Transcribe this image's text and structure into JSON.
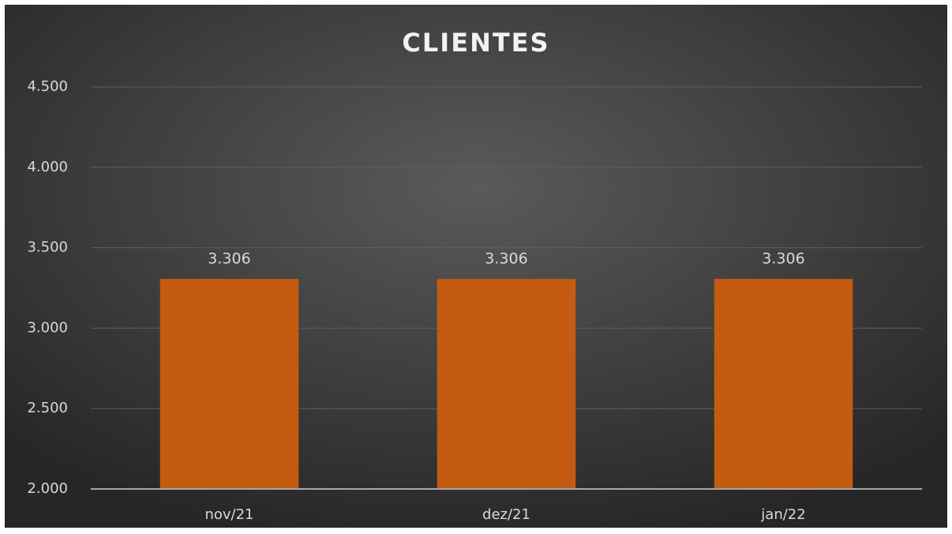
{
  "chart_data": {
    "type": "bar",
    "title": "CLIENTES",
    "categories": [
      "nov/21",
      "dez/21",
      "jan/22"
    ],
    "values": [
      3306,
      3306,
      3306
    ],
    "value_labels": [
      "3.306",
      "3.306",
      "3.306"
    ],
    "color": "#c55a11",
    "ylim": [
      2000,
      4500
    ],
    "yticks": [
      {
        "value": 2000,
        "label": "2.000"
      },
      {
        "value": 2500,
        "label": "2.500"
      },
      {
        "value": 3000,
        "label": "3.000"
      },
      {
        "value": 3500,
        "label": "3.500"
      },
      {
        "value": 4000,
        "label": "4.000"
      },
      {
        "value": 4500,
        "label": "4.500"
      }
    ],
    "grid": true
  }
}
